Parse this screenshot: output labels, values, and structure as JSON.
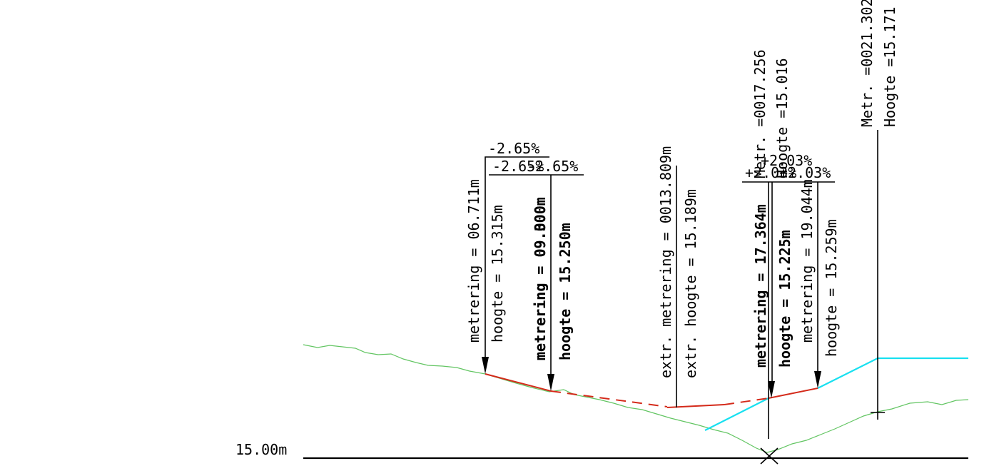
{
  "datum": {
    "label": "15.00m"
  },
  "colors": {
    "terrain": "#62c562",
    "design_cyan": "#18e0f0",
    "design_red": "#d42a1a",
    "ink": "#000000"
  },
  "annotations": {
    "point_1": {
      "slope_top": "-2.65%",
      "metrering": "metrering = 06.711m",
      "hoogte": "hoogte = 15.315m"
    },
    "point_2": {
      "slope_a": "-2.65%",
      "slope_b": "-2.65%",
      "metrering_a": "metrering = 09.000m",
      "metrering_b": "metrering = 09.300m",
      "hoogte": "hoogte = 15.250m"
    },
    "extreme": {
      "metrering": "extr. metrering = 0013.809m",
      "hoogte": "extr. hoogte = 15.189m"
    },
    "point_3": {
      "metr": "Metr. =0017.256",
      "hoogte_top": "Hoogte =15.016",
      "slope_a": "+2.03%",
      "slope_b": "+2.03%",
      "slope_c": "+2.03%",
      "metrering": "metrering = 17.364m",
      "hoogte": "hoogte = 15.225m"
    },
    "point_4": {
      "metrering": "metrering = 19.044m",
      "hoogte": "hoogte = 15.259m"
    },
    "point_5": {
      "metr": "Metr. =0021.302",
      "hoogte": "Hoogte =15.171"
    }
  }
}
